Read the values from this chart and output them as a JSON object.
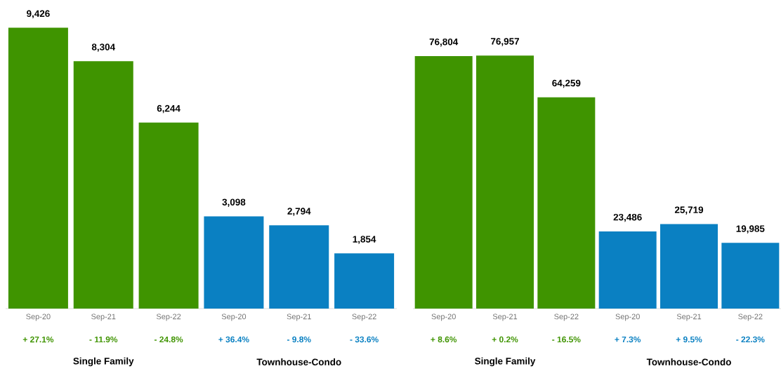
{
  "chart_data": [
    {
      "type": "bar",
      "categories": [
        "Sep-20",
        "Sep-21",
        "Sep-22",
        "Sep-20",
        "Sep-21",
        "Sep-22"
      ],
      "values": [
        9426,
        8304,
        6244,
        3098,
        2794,
        1854
      ],
      "colors": [
        "#3f9400",
        "#3f9400",
        "#3f9400",
        "#0a80c2",
        "#0a80c2",
        "#0a80c2"
      ],
      "value_labels": [
        "9,426",
        "8,304",
        "6,244",
        "3,098",
        "2,794",
        "1,854"
      ],
      "annotations": [
        "+ 27.1%",
        "- 11.9%",
        "- 24.8%",
        "+ 36.4%",
        "- 9.8%",
        "- 33.6%",
        "Single Family",
        "Townhouse-Condo"
      ]
    },
    {
      "type": "bar",
      "categories": [
        "Sep-20",
        "Sep-21",
        "Sep-22",
        "Sep-20",
        "Sep-21",
        "Sep-22"
      ],
      "values": [
        76804,
        76957,
        64259,
        23486,
        25719,
        19985
      ],
      "colors": [
        "#3f9400",
        "#3f9400",
        "#3f9400",
        "#0a80c2",
        "#0a80c2",
        "#0a80c2"
      ],
      "value_labels": [
        "76,804",
        "76,957",
        "64,259",
        "23,486",
        "25,719",
        "19,985"
      ],
      "annotations": [
        "+ 8.6%",
        "+ 0.2%",
        "- 16.5%",
        "+ 7.3%",
        "+ 9.5%",
        "- 22.3%",
        "Single Family",
        "Townhouse-Condo"
      ]
    }
  ]
}
